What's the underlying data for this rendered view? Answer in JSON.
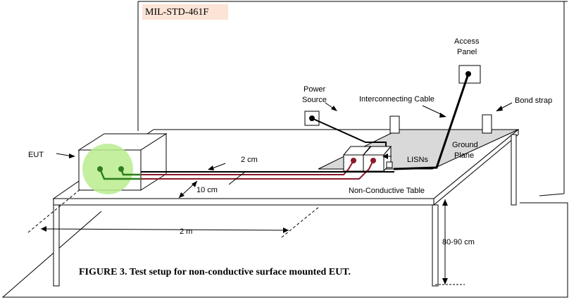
{
  "header": {
    "standard": "MIL-STD-461F"
  },
  "labels": {
    "eut": "EUT",
    "access_panel_line1": "Access",
    "access_panel_line2": "Panel",
    "power_source_line1": "Power",
    "power_source_line2": "Source",
    "interconnecting_cable": "Interconnecting Cable",
    "bond_strap": "Bond strap",
    "ground_plane_line1": "Ground",
    "ground_plane_line2": "Plane",
    "lisns": "LISNs",
    "non_conductive_table": "Non-Conductive Table",
    "dim_2cm": "2 cm",
    "dim_10cm": "10 cm",
    "dim_2m": "2 m",
    "dim_height": "80-90 cm"
  },
  "caption": "FIGURE 3.  Test setup for non-conductive surface mounted EUT.",
  "colors": {
    "line": "#000000",
    "ground_plane_fill": "#d9d9d9",
    "power_lead": "#8b1a2b",
    "eut_lead": "#2e7d1a",
    "eut_highlight": "#b9ec8e",
    "header_highlight": "#fbe3d6"
  }
}
